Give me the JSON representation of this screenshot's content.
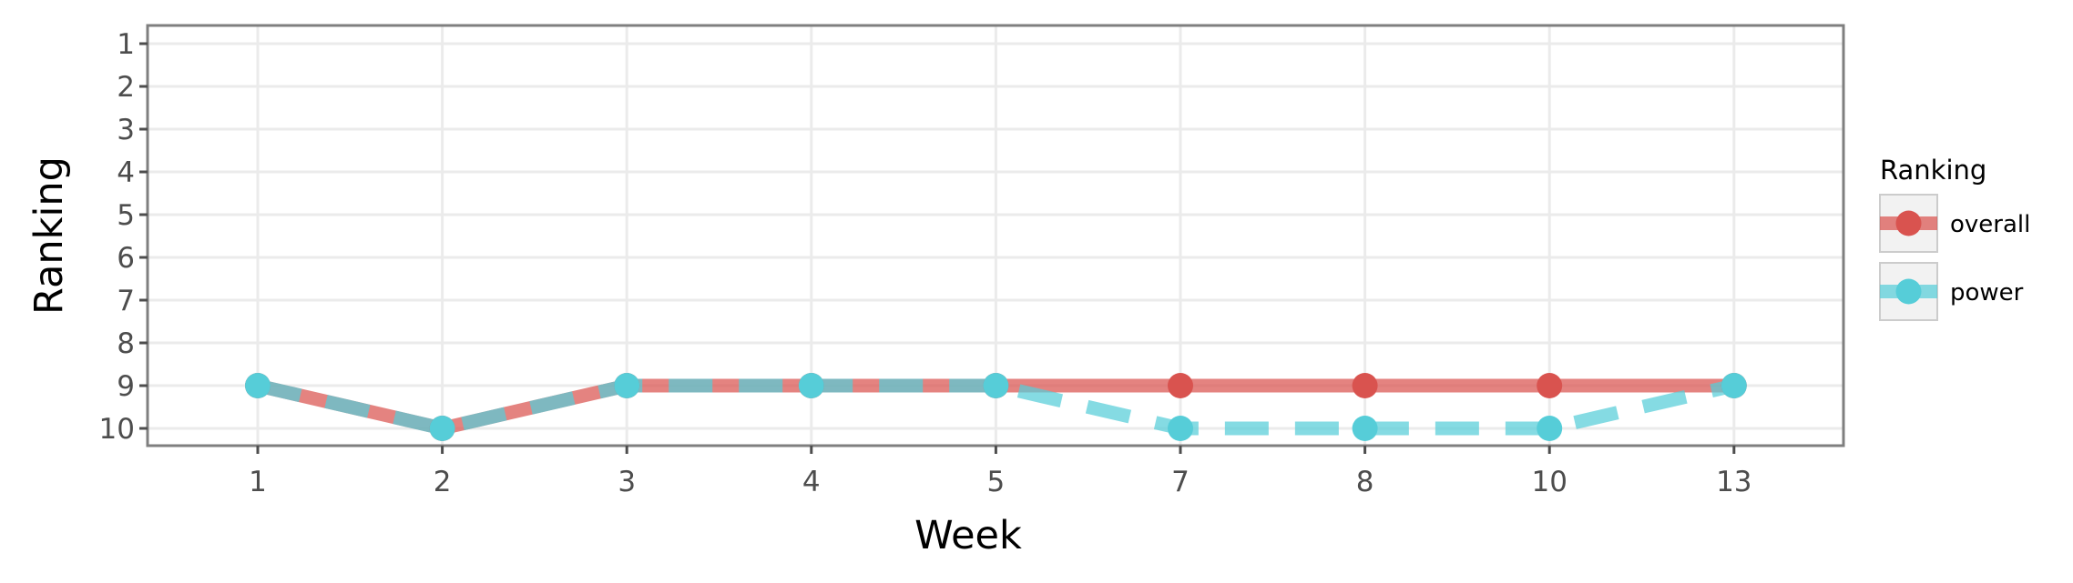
{
  "chart_data": {
    "type": "line",
    "xlabel": "Week",
    "ylabel": "Ranking",
    "categories": [
      "1",
      "2",
      "3",
      "4",
      "5",
      "7",
      "8",
      "10",
      "13"
    ],
    "y_ticks": [
      "1",
      "2",
      "3",
      "4",
      "5",
      "6",
      "7",
      "8",
      "9",
      "10"
    ],
    "ylim": [
      1,
      10
    ],
    "y_reversed": true,
    "grid": true,
    "legend": {
      "title": "Ranking",
      "position": "right"
    },
    "series": [
      {
        "name": "overall",
        "color": "#d9534f",
        "line_style": "solid",
        "values": [
          9,
          10,
          9,
          9,
          9,
          9,
          9,
          9,
          9
        ]
      },
      {
        "name": "power",
        "color": "#56cdd8",
        "line_style": "dashed",
        "values": [
          9,
          10,
          9,
          9,
          9,
          10,
          10,
          10,
          9
        ]
      }
    ]
  }
}
